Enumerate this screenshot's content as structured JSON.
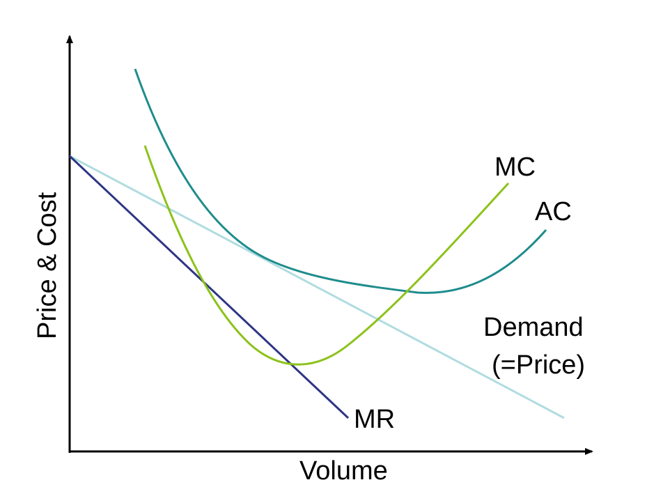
{
  "axes": {
    "y_label": "Price & Cost",
    "x_label": "Volume"
  },
  "curves": {
    "mc": {
      "label": "MC",
      "color": "#8cc21a"
    },
    "ac": {
      "label": "AC",
      "color": "#1e8c8c"
    },
    "demand": {
      "label_line1": "Demand",
      "label_line2": "(=Price)",
      "color": "#b0dce0"
    },
    "mr": {
      "label": "MR",
      "color": "#2e3585"
    }
  },
  "axis_color": "#000000"
}
